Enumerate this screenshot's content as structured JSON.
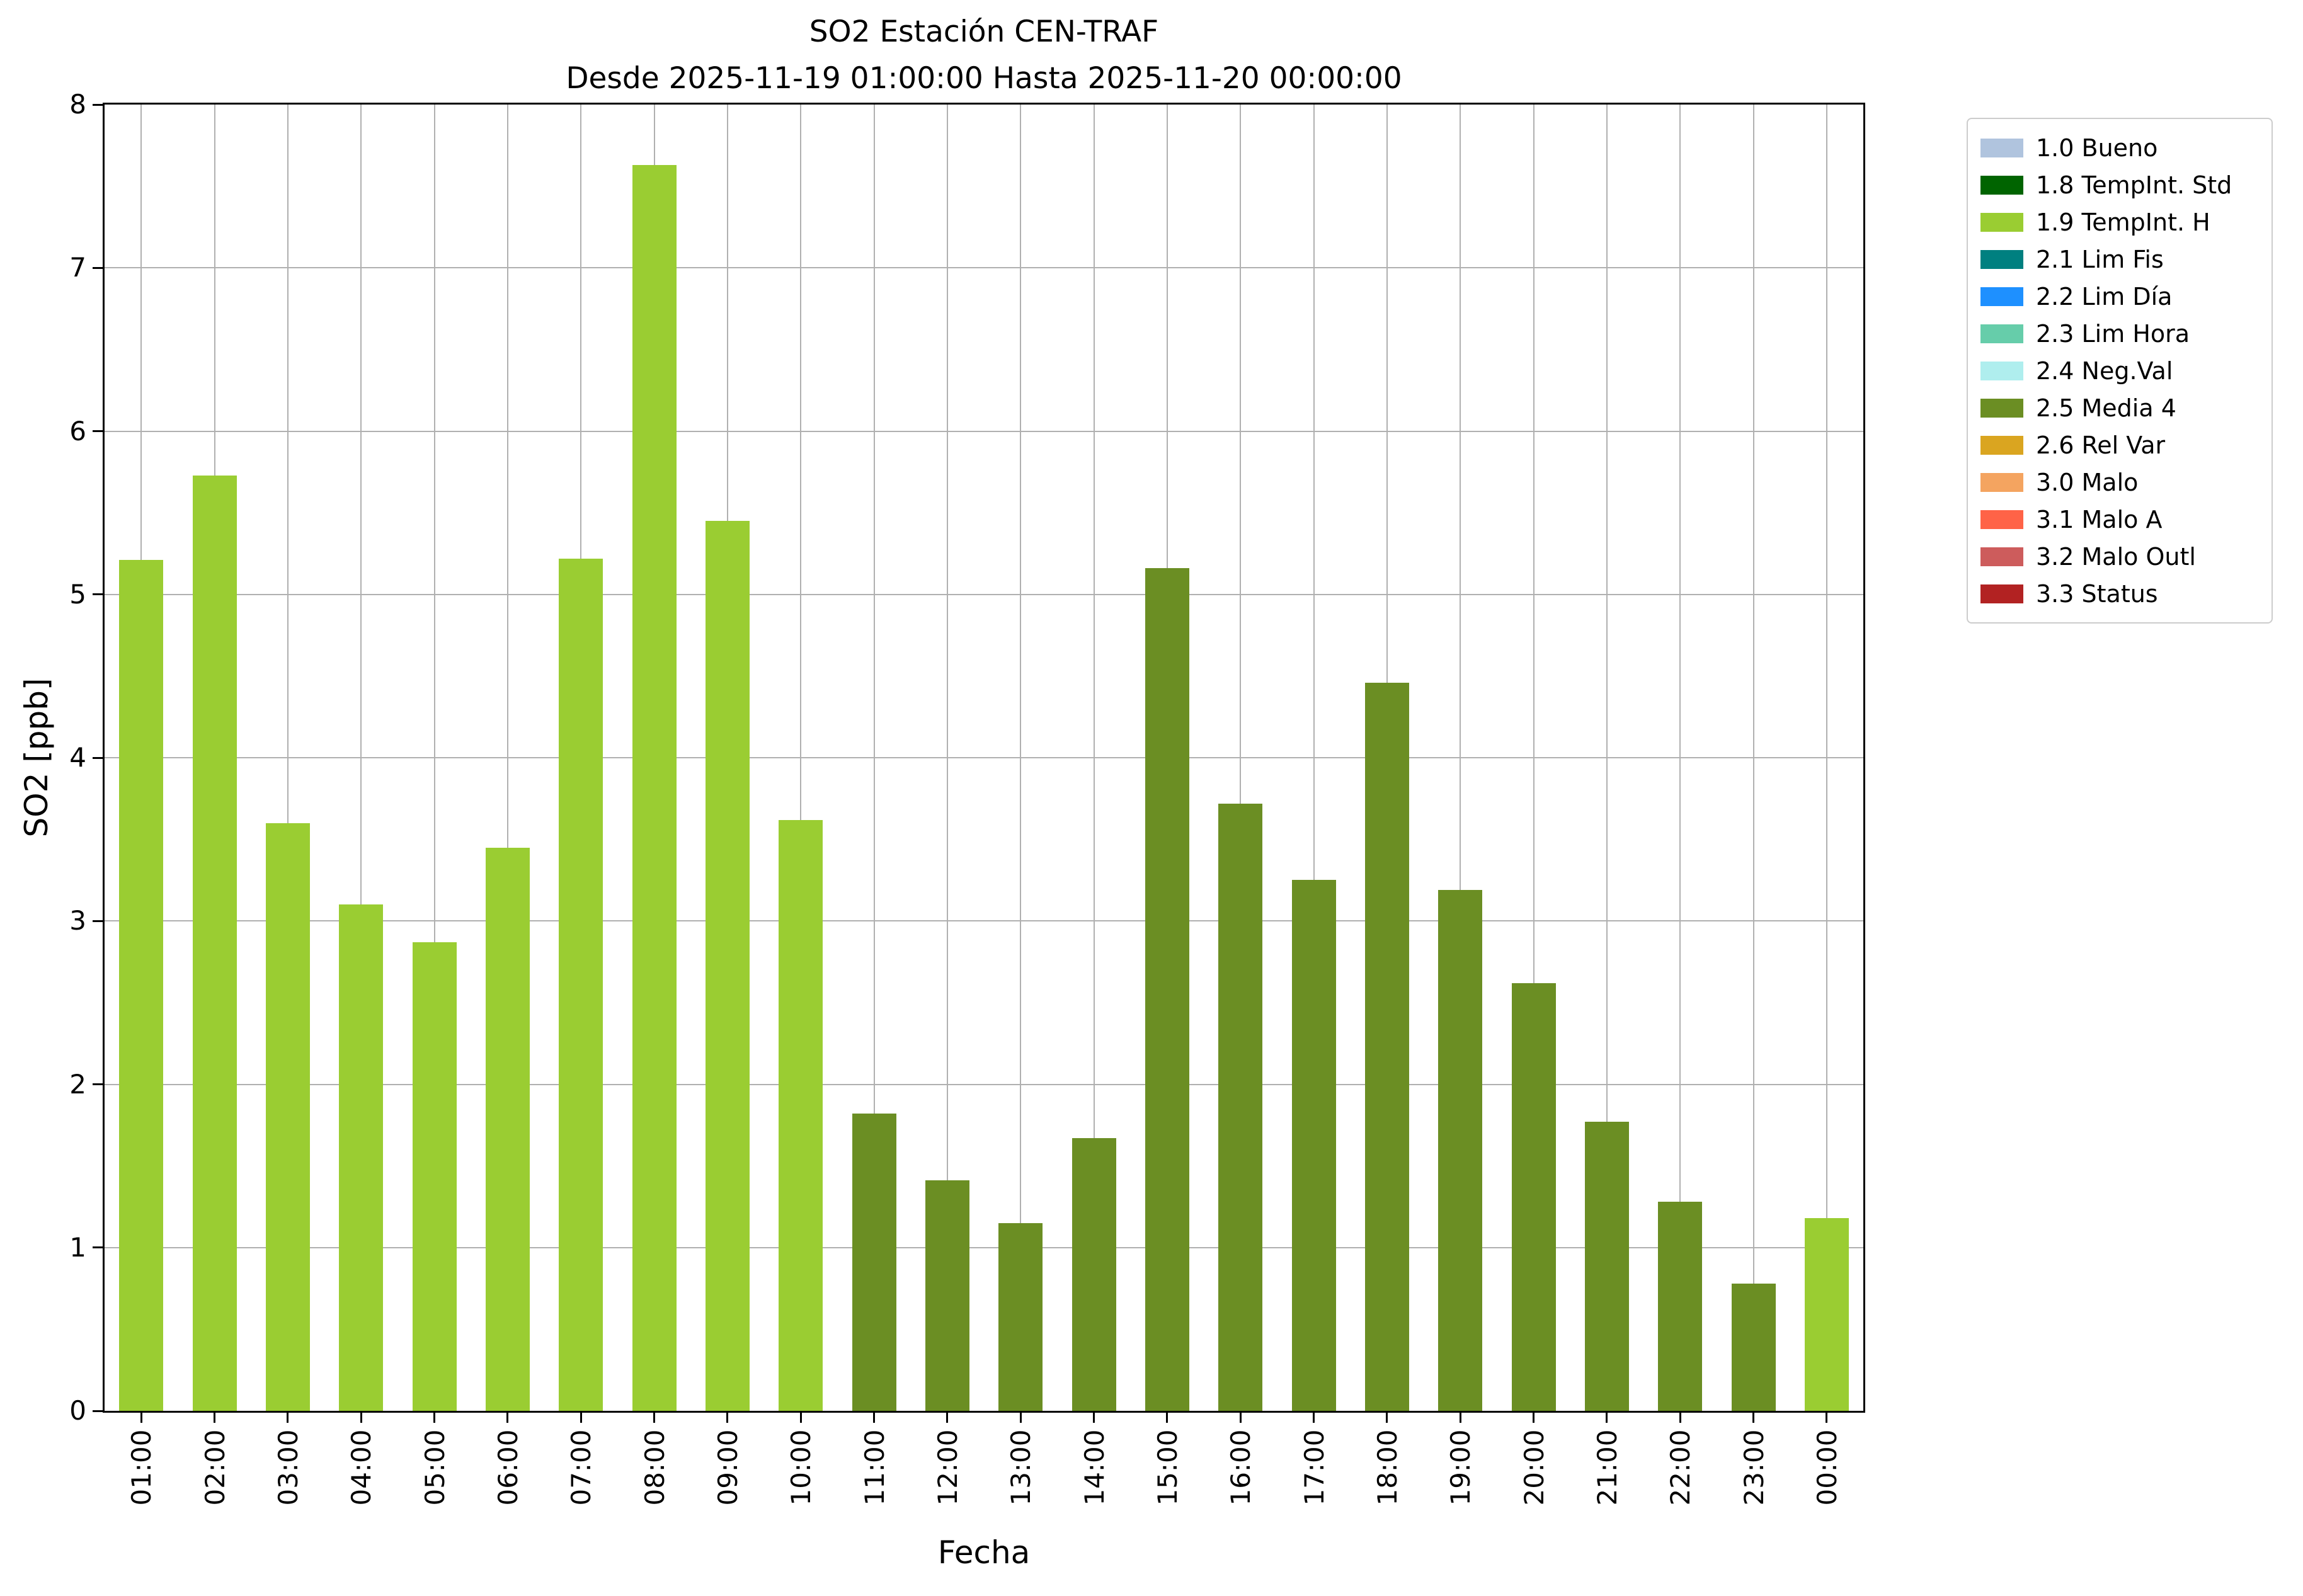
{
  "chart_data": {
    "type": "bar",
    "title": "SO2 Estación CEN-TRAF",
    "subtitle": "Desde 2025-11-19 01:00:00 Hasta 2025-11-20 00:00:00",
    "xlabel": "Fecha",
    "ylabel": "SO2 [ppb]",
    "ylim": [
      0,
      8
    ],
    "yticks": [
      0,
      1,
      2,
      3,
      4,
      5,
      6,
      7,
      8
    ],
    "grid": true,
    "legend_position": "outside-top-right",
    "categories": [
      "01:00",
      "02:00",
      "03:00",
      "04:00",
      "05:00",
      "06:00",
      "07:00",
      "08:00",
      "09:00",
      "10:00",
      "11:00",
      "12:00",
      "13:00",
      "14:00",
      "15:00",
      "16:00",
      "17:00",
      "18:00",
      "19:00",
      "20:00",
      "21:00",
      "22:00",
      "23:00",
      "00:00"
    ],
    "values": [
      5.21,
      5.73,
      3.6,
      3.1,
      2.87,
      3.45,
      5.22,
      7.63,
      5.45,
      3.62,
      1.82,
      1.41,
      1.15,
      1.67,
      5.16,
      3.72,
      3.25,
      4.46,
      3.19,
      2.62,
      1.77,
      1.28,
      0.78,
      1.18
    ],
    "bar_flags": [
      "1.9 TempInt. H",
      "1.9 TempInt. H",
      "1.9 TempInt. H",
      "1.9 TempInt. H",
      "1.9 TempInt. H",
      "1.9 TempInt. H",
      "1.9 TempInt. H",
      "1.9 TempInt. H",
      "1.9 TempInt. H",
      "1.9 TempInt. H",
      "2.5 Media 4",
      "2.5 Media 4",
      "2.5 Media 4",
      "2.5 Media 4",
      "2.5 Media 4",
      "2.5 Media 4",
      "2.5 Media 4",
      "2.5 Media 4",
      "2.5 Media 4",
      "2.5 Media 4",
      "2.5 Media 4",
      "2.5 Media 4",
      "2.5 Media 4",
      "1.9 TempInt. H"
    ],
    "legend": [
      {
        "label": "1.0 Bueno",
        "color": "#B0C4DE"
      },
      {
        "label": "1.8 TempInt. Std",
        "color": "#006400"
      },
      {
        "label": "1.9 TempInt. H",
        "color": "#9ACD32"
      },
      {
        "label": "2.1 Lim Fis",
        "color": "#008080"
      },
      {
        "label": "2.2 Lim Día",
        "color": "#1E90FF"
      },
      {
        "label": "2.3 Lim Hora",
        "color": "#66CDAA"
      },
      {
        "label": "2.4 Neg.Val",
        "color": "#AFEEEE"
      },
      {
        "label": "2.5 Media 4",
        "color": "#6B8E23"
      },
      {
        "label": "2.6 Rel Var",
        "color": "#DAA520"
      },
      {
        "label": "3.0 Malo",
        "color": "#F4A460"
      },
      {
        "label": "3.1 Malo A",
        "color": "#FF6347"
      },
      {
        "label": "3.2 Malo Outl",
        "color": "#CD5C5C"
      },
      {
        "label": "3.3 Status",
        "color": "#B22222"
      }
    ],
    "style": {
      "grid_color": "#b0b0b0",
      "frame_color": "#000000",
      "background": "#ffffff"
    }
  }
}
